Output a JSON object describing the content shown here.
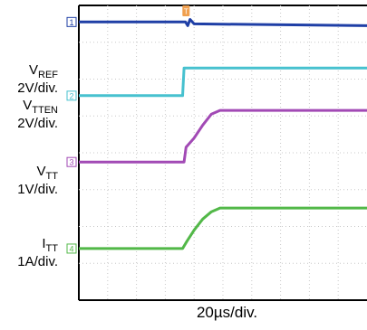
{
  "chart_data": {
    "type": "line",
    "timebase": "20µs/div.",
    "x_divisions": 10,
    "y_divisions": 8,
    "grid": true,
    "trigger_marker": "T",
    "colors": {
      "grid": "#c8c8c8",
      "border": "#000000"
    },
    "series": [
      {
        "name": "VREF",
        "name_main": "V",
        "name_sub": "REF",
        "scale": "2V/div.",
        "channel": "1",
        "color": "#1f3fa6",
        "points": [
          [
            0,
            7.55
          ],
          [
            3.7,
            7.55
          ],
          [
            3.78,
            7.45
          ],
          [
            3.86,
            7.62
          ],
          [
            4.0,
            7.5
          ],
          [
            10.1,
            7.45
          ]
        ]
      },
      {
        "name": "VTTEN",
        "name_main": "V",
        "name_sub": "TTEN",
        "scale": "2V/div.",
        "channel": "2",
        "color": "#47c1cf",
        "points": [
          [
            0,
            5.55
          ],
          [
            3.6,
            5.55
          ],
          [
            3.65,
            6.3
          ],
          [
            10.1,
            6.3
          ]
        ]
      },
      {
        "name": "VTT",
        "name_main": "V",
        "name_sub": "TT",
        "scale": "1V/div.",
        "channel": "3",
        "color": "#a24ab5",
        "points": [
          [
            0,
            3.75
          ],
          [
            3.65,
            3.75
          ],
          [
            3.72,
            4.15
          ],
          [
            4.0,
            4.4
          ],
          [
            4.3,
            4.75
          ],
          [
            4.6,
            5.05
          ],
          [
            4.9,
            5.15
          ],
          [
            10.1,
            5.15
          ]
        ]
      },
      {
        "name": "ITT",
        "name_main": "I",
        "name_sub": "TT",
        "scale": "1A/div.",
        "channel": "4",
        "color": "#52b848",
        "points": [
          [
            0,
            1.4
          ],
          [
            3.6,
            1.4
          ],
          [
            3.75,
            1.6
          ],
          [
            4.0,
            1.9
          ],
          [
            4.3,
            2.2
          ],
          [
            4.6,
            2.4
          ],
          [
            4.9,
            2.5
          ],
          [
            10.1,
            2.5
          ]
        ]
      }
    ]
  }
}
